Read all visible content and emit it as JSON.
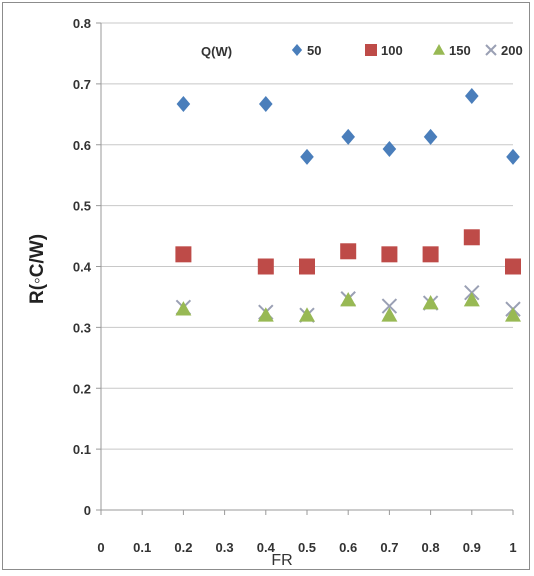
{
  "chart_data": {
    "type": "scatter",
    "xlabel": "FR",
    "ylabel": "R(◦C/W)",
    "xlim": [
      0,
      1
    ],
    "ylim": [
      0,
      0.8
    ],
    "x_ticks": [
      "0",
      "0.1",
      "0.2",
      "0.3",
      "0.4",
      "0.5",
      "0.6",
      "0.7",
      "0.8",
      "0.9",
      "1"
    ],
    "y_ticks": [
      "0",
      "0.1",
      "0.2",
      "0.3",
      "0.4",
      "0.5",
      "0.6",
      "0.7",
      "0.8"
    ],
    "grid": "horizontal",
    "legend": {
      "title": "Q(W)",
      "position": "top"
    },
    "series": [
      {
        "name": "50",
        "marker": "diamond",
        "color": "#4a7ebb",
        "points": [
          [
            0.2,
            0.667
          ],
          [
            0.4,
            0.667
          ],
          [
            0.5,
            0.58
          ],
          [
            0.6,
            0.613
          ],
          [
            0.7,
            0.593
          ],
          [
            0.8,
            0.613
          ],
          [
            0.9,
            0.68
          ],
          [
            1.0,
            0.58
          ]
        ]
      },
      {
        "name": "100",
        "marker": "square",
        "color": "#be4b48",
        "points": [
          [
            0.2,
            0.42
          ],
          [
            0.4,
            0.4
          ],
          [
            0.5,
            0.4
          ],
          [
            0.6,
            0.425
          ],
          [
            0.7,
            0.42
          ],
          [
            0.8,
            0.42
          ],
          [
            0.9,
            0.448
          ],
          [
            1.0,
            0.4
          ]
        ]
      },
      {
        "name": "150",
        "marker": "triangle",
        "color": "#98b954",
        "points": [
          [
            0.2,
            0.33
          ],
          [
            0.4,
            0.32
          ],
          [
            0.5,
            0.32
          ],
          [
            0.6,
            0.345
          ],
          [
            0.7,
            0.32
          ],
          [
            0.8,
            0.34
          ],
          [
            0.9,
            0.345
          ],
          [
            1.0,
            0.32
          ]
        ]
      },
      {
        "name": "200",
        "marker": "x",
        "color": "#9aa0b4",
        "points": [
          [
            0.2,
            0.333
          ],
          [
            0.4,
            0.325
          ],
          [
            0.5,
            0.32
          ],
          [
            0.6,
            0.347
          ],
          [
            0.7,
            0.335
          ],
          [
            0.8,
            0.34
          ],
          [
            0.9,
            0.357
          ],
          [
            1.0,
            0.33
          ]
        ]
      }
    ]
  }
}
